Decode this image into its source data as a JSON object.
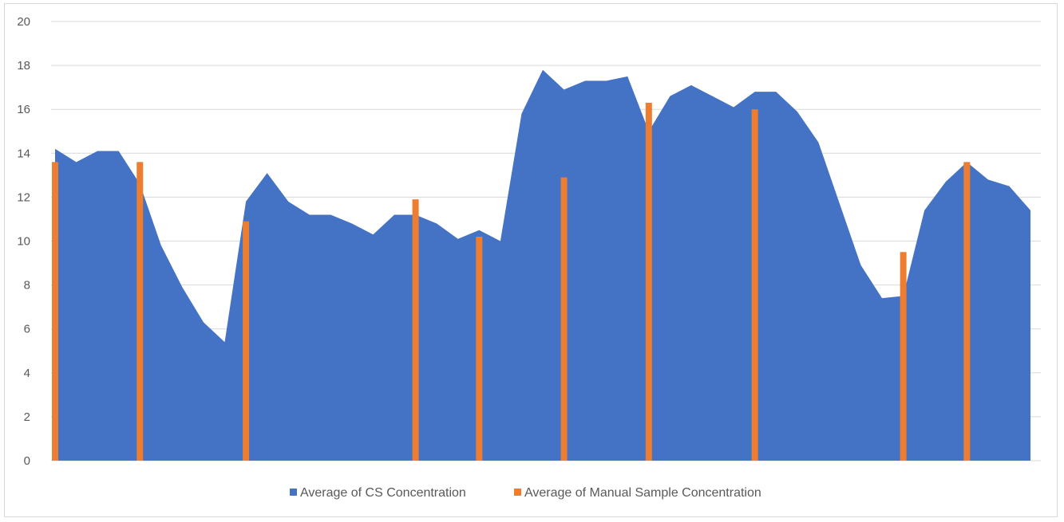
{
  "chart_data": {
    "type": "area",
    "title": "",
    "xlabel": "",
    "ylabel": "",
    "ylim": [
      0,
      20
    ],
    "y_ticks": [
      "0",
      "2",
      "4",
      "6",
      "8",
      "10",
      "12",
      "14",
      "16",
      "18",
      "20"
    ],
    "grid": true,
    "legend_position": "bottom",
    "series": [
      {
        "name": "Average of CS Concentration",
        "type": "area",
        "color": "#4472C4",
        "x": [
          0,
          1,
          2,
          3,
          4,
          5,
          6,
          7,
          8,
          9,
          10,
          11,
          12,
          13,
          14,
          15,
          16,
          17,
          18,
          19,
          20,
          21,
          22,
          23,
          24,
          25,
          26,
          27,
          28,
          29,
          30,
          31,
          32,
          33,
          34,
          35,
          36,
          37,
          38,
          39,
          40,
          41,
          42,
          43,
          44,
          45,
          46
        ],
        "values": [
          14.2,
          13.6,
          14.1,
          14.1,
          12.6,
          9.8,
          7.9,
          6.3,
          5.4,
          11.8,
          13.1,
          11.8,
          11.2,
          11.2,
          10.8,
          10.3,
          11.2,
          11.2,
          10.8,
          10.1,
          10.5,
          10.0,
          15.8,
          17.8,
          16.9,
          17.3,
          17.3,
          17.5,
          15.0,
          16.6,
          17.1,
          16.6,
          16.1,
          16.8,
          16.8,
          15.9,
          14.5,
          11.7,
          8.9,
          7.4,
          7.5,
          11.4,
          12.7,
          13.6,
          12.8,
          12.5,
          11.4
        ]
      },
      {
        "name": "Average of Manual Sample Concentration",
        "type": "bar",
        "color": "#ED7D31",
        "x": [
          0,
          4,
          9,
          17,
          20,
          24,
          28,
          33,
          40,
          43
        ],
        "values": [
          13.6,
          13.6,
          10.9,
          11.9,
          10.2,
          12.9,
          16.3,
          16.0,
          9.5,
          13.6
        ]
      }
    ]
  }
}
